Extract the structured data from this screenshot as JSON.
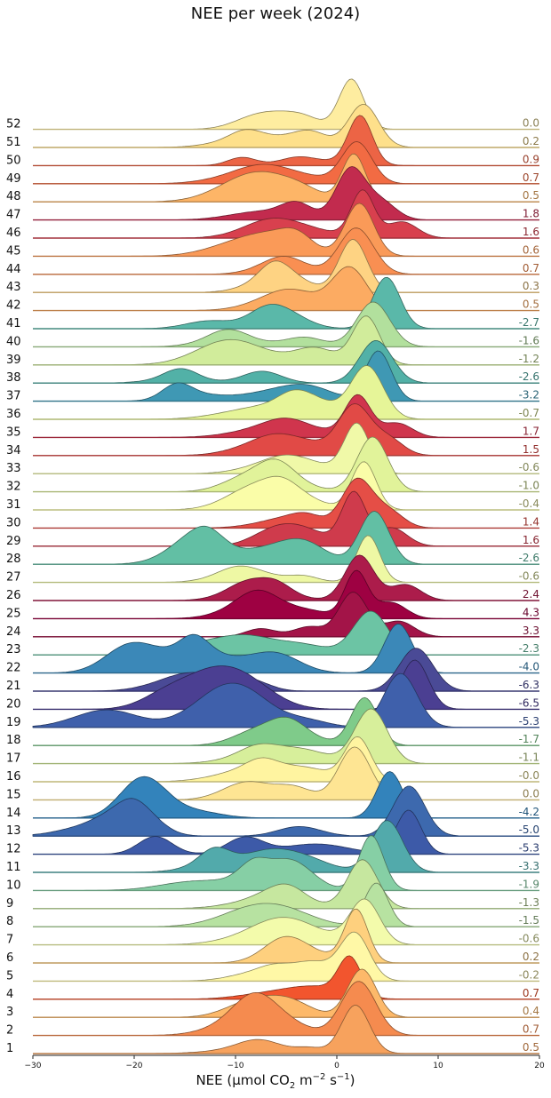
{
  "chart_data": {
    "type": "ridgeline",
    "title": "NEE per week (2024)",
    "xlabel": {
      "main": "NEE (µmol CO",
      "sub": "2",
      "mid": " m",
      "sup1": "−2",
      "mid2": " s",
      "sup2": "−1",
      "end": ")"
    },
    "xlim": [
      -30,
      20
    ],
    "xticks": [
      -30,
      -20,
      -10,
      0,
      10,
      20
    ],
    "colormap": "Spectral (colored by weekly median NEE)",
    "weeks": [
      {
        "week": "1",
        "median": "0.5",
        "color": "#f7a25d"
      },
      {
        "week": "2",
        "median": "0.7",
        "color": "#f58b4f"
      },
      {
        "week": "3",
        "median": "0.4",
        "color": "#fdb96a"
      },
      {
        "week": "4",
        "median": "0.7",
        "color": "#f2552e"
      },
      {
        "week": "5",
        "median": "-0.2",
        "color": "#fff8a6"
      },
      {
        "week": "6",
        "median": "0.2",
        "color": "#fed07e"
      },
      {
        "week": "7",
        "median": "-0.6",
        "color": "#f3fbab"
      },
      {
        "week": "8",
        "median": "-1.5",
        "color": "#b7e2a1"
      },
      {
        "week": "9",
        "median": "-1.3",
        "color": "#c6e79f"
      },
      {
        "week": "10",
        "median": "-1.9",
        "color": "#86cfa5"
      },
      {
        "week": "11",
        "median": "-3.3",
        "color": "#52aaab"
      },
      {
        "week": "12",
        "median": "-5.3",
        "color": "#3d5aa8"
      },
      {
        "week": "13",
        "median": "-5.0",
        "color": "#3d69ae"
      },
      {
        "week": "14",
        "median": "-4.2",
        "color": "#3383bb"
      },
      {
        "week": "15",
        "median": "0.0",
        "color": "#fee593"
      },
      {
        "week": "16",
        "median": "-0.0",
        "color": "#fff4a0"
      },
      {
        "week": "17",
        "median": "-1.1",
        "color": "#d7ef9b"
      },
      {
        "week": "18",
        "median": "-1.7",
        "color": "#7fcb8a"
      },
      {
        "week": "19",
        "median": "-5.3",
        "color": "#3f60ab"
      },
      {
        "week": "20",
        "median": "-6.5",
        "color": "#4b3f92"
      },
      {
        "week": "21",
        "median": "-6.3",
        "color": "#4a4a96"
      },
      {
        "week": "22",
        "median": "-4.0",
        "color": "#3b88b8"
      },
      {
        "week": "23",
        "median": "-2.3",
        "color": "#6cc4a4"
      },
      {
        "week": "24",
        "median": "3.3",
        "color": "#a31448"
      },
      {
        "week": "25",
        "median": "4.3",
        "color": "#9e0142"
      },
      {
        "week": "26",
        "median": "2.4",
        "color": "#ac1c4b"
      },
      {
        "week": "27",
        "median": "-0.6",
        "color": "#eef8a4"
      },
      {
        "week": "28",
        "median": "-2.6",
        "color": "#62bfa4"
      },
      {
        "week": "29",
        "median": "1.6",
        "color": "#cf3b4c"
      },
      {
        "week": "30",
        "median": "1.4",
        "color": "#e54e46"
      },
      {
        "week": "31",
        "median": "-0.4",
        "color": "#fafda8"
      },
      {
        "week": "32",
        "median": "-1.0",
        "color": "#e1f39a"
      },
      {
        "week": "33",
        "median": "-0.6",
        "color": "#f0f9a8"
      },
      {
        "week": "34",
        "median": "1.5",
        "color": "#e14a46"
      },
      {
        "week": "35",
        "median": "1.7",
        "color": "#d0354d"
      },
      {
        "week": "36",
        "median": "-0.7",
        "color": "#e6f598"
      },
      {
        "week": "37",
        "median": "-3.2",
        "color": "#3f98b4"
      },
      {
        "week": "38",
        "median": "-2.6",
        "color": "#52b1a7"
      },
      {
        "week": "39",
        "median": "-1.2",
        "color": "#d1ec9b"
      },
      {
        "week": "40",
        "median": "-1.6",
        "color": "#b2e09d"
      },
      {
        "week": "41",
        "median": "-2.7",
        "color": "#5ab8a9"
      },
      {
        "week": "42",
        "median": "0.5",
        "color": "#fcab62"
      },
      {
        "week": "43",
        "median": "0.3",
        "color": "#fed383"
      },
      {
        "week": "44",
        "median": "0.7",
        "color": "#f98f52"
      },
      {
        "week": "45",
        "median": "0.6",
        "color": "#fa9a58"
      },
      {
        "week": "46",
        "median": "1.6",
        "color": "#d8404e"
      },
      {
        "week": "47",
        "median": "1.8",
        "color": "#c22b4e"
      },
      {
        "week": "48",
        "median": "0.5",
        "color": "#fdb567"
      },
      {
        "week": "49",
        "median": "0.7",
        "color": "#f26b43"
      },
      {
        "week": "50",
        "median": "0.9",
        "color": "#ec6445"
      },
      {
        "week": "51",
        "median": "0.2",
        "color": "#fee08b"
      },
      {
        "week": "52",
        "median": "0.0",
        "color": "#feeda0"
      }
    ]
  }
}
